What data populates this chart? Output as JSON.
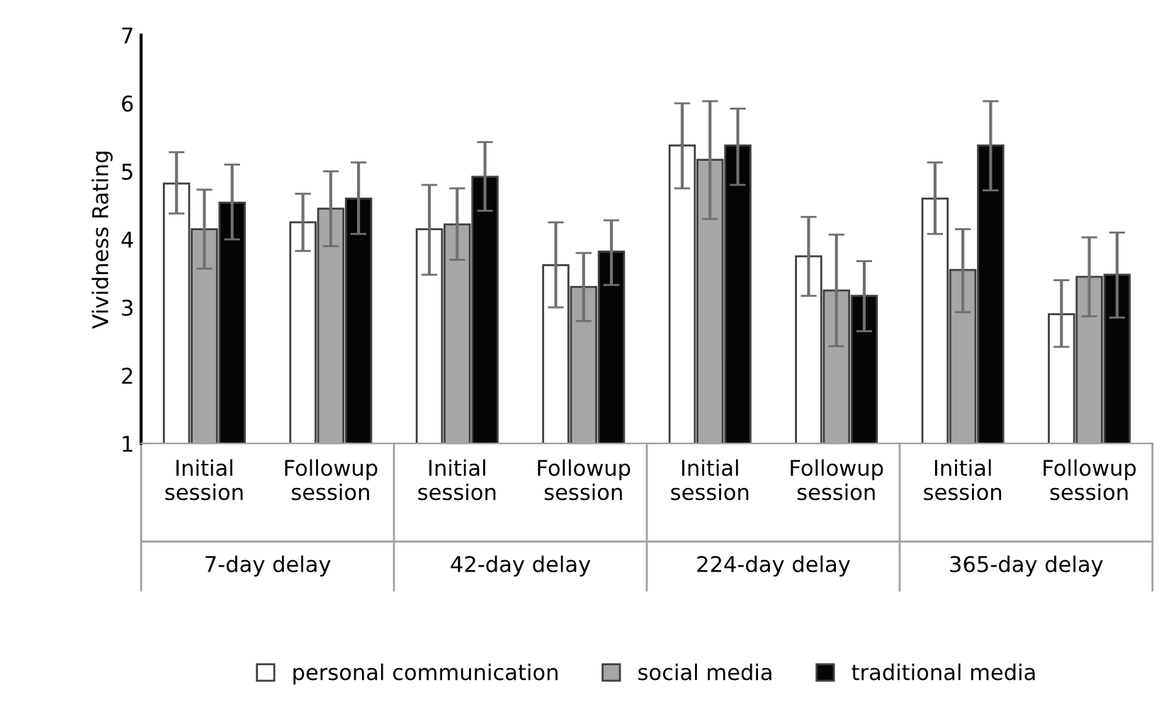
{
  "chart_data": {
    "type": "bar",
    "ylabel": "Vividness Rating",
    "categories": [
      "Initial\nsession",
      "Followup\nsession",
      "Initial\nsession",
      "Followup\nsession",
      "Initial\nsession",
      "Followup\nsession",
      "Initial\nsession",
      "Followup\nsession"
    ],
    "annotations": [
      "7-day delay",
      "42-day delay",
      "224-day delay",
      "365-day delay"
    ],
    "series": [
      {
        "name": "personal communication",
        "color": "#ffffff",
        "values": [
          4.82,
          4.25,
          4.15,
          3.62,
          5.38,
          3.75,
          4.6,
          2.9
        ],
        "errors": [
          [
            4.38,
            5.28
          ],
          [
            3.83,
            4.67
          ],
          [
            3.48,
            4.8
          ],
          [
            3.0,
            4.25
          ],
          [
            4.75,
            6.0
          ],
          [
            3.17,
            4.33
          ],
          [
            4.08,
            5.13
          ],
          [
            2.42,
            3.4
          ]
        ]
      },
      {
        "name": "social media",
        "color": "#a6a6a6",
        "values": [
          4.15,
          4.45,
          4.22,
          3.3,
          5.17,
          3.25,
          3.55,
          3.45
        ],
        "errors": [
          [
            3.57,
            4.73
          ],
          [
            3.9,
            5.0
          ],
          [
            3.7,
            4.75
          ],
          [
            2.8,
            3.8
          ],
          [
            4.3,
            6.03
          ],
          [
            2.43,
            4.07
          ],
          [
            2.93,
            4.15
          ],
          [
            2.87,
            4.03
          ]
        ]
      },
      {
        "name": "traditional media",
        "color": "#050505",
        "values": [
          4.54,
          4.6,
          4.92,
          3.82,
          5.38,
          3.17,
          5.38,
          3.48
        ],
        "errors": [
          [
            4.0,
            5.1
          ],
          [
            4.08,
            5.13
          ],
          [
            4.42,
            5.43
          ],
          [
            3.33,
            4.28
          ],
          [
            4.8,
            5.92
          ],
          [
            2.65,
            3.68
          ],
          [
            4.72,
            6.03
          ],
          [
            2.85,
            4.1
          ]
        ]
      }
    ],
    "ylim": [
      1,
      7
    ],
    "yticks": [
      1,
      2,
      3,
      4,
      5,
      6,
      7
    ],
    "grid": false,
    "legend": "bottom"
  }
}
